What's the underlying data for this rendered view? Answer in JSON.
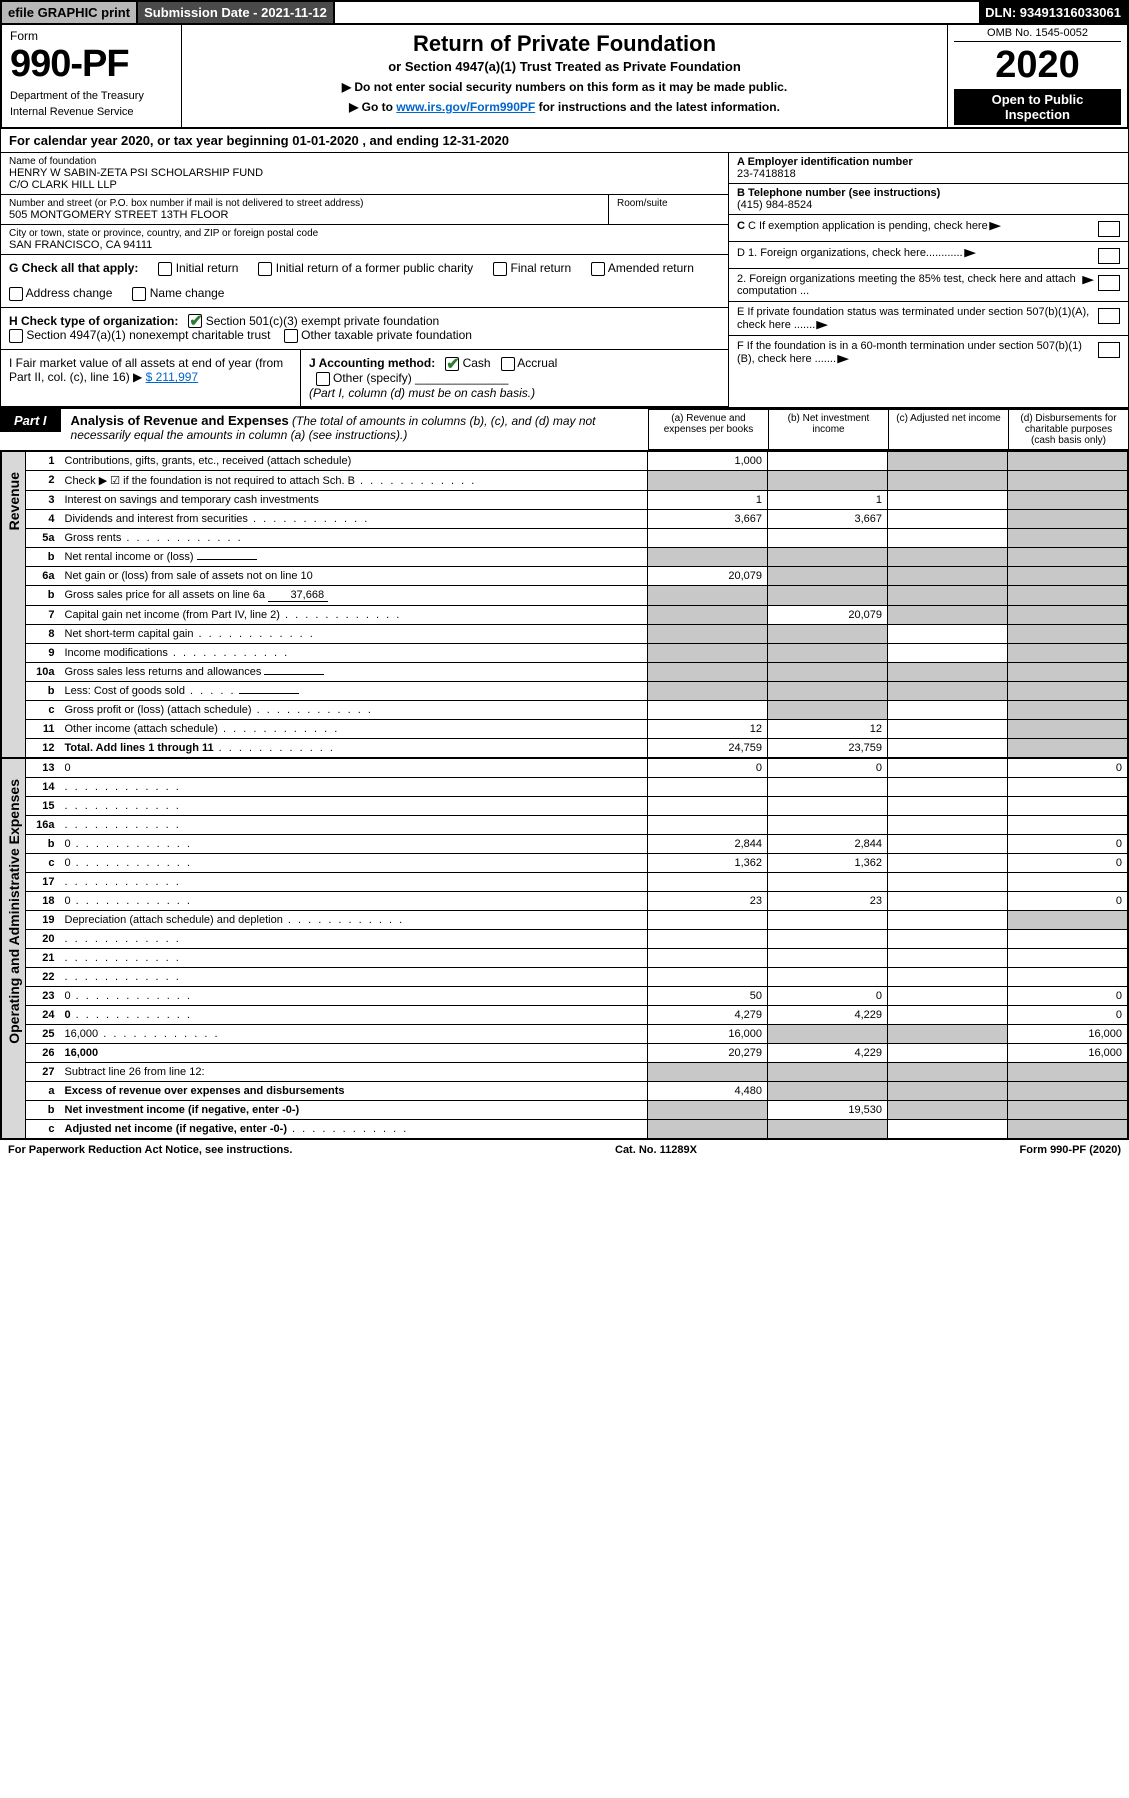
{
  "top": {
    "efile": "efile GRAPHIC print",
    "sub_date_label": "Submission Date - 2021-11-12",
    "dln": "DLN: 93491316033061"
  },
  "header": {
    "form_word": "Form",
    "form_num": "990-PF",
    "dept": "Department of the Treasury",
    "irs": "Internal Revenue Service",
    "title": "Return of Private Foundation",
    "subtitle": "or Section 4947(a)(1) Trust Treated as Private Foundation",
    "inst1": "▶ Do not enter social security numbers on this form as it may be made public.",
    "inst2_pre": "▶ Go to ",
    "inst2_link": "www.irs.gov/Form990PF",
    "inst2_post": " for instructions and the latest information.",
    "omb": "OMB No. 1545-0052",
    "year": "2020",
    "open_pub": "Open to Public Inspection"
  },
  "cal_year": "For calendar year 2020, or tax year beginning 01-01-2020              , and ending 12-31-2020",
  "foundation": {
    "name_lbl": "Name of foundation",
    "name1": "HENRY W SABIN-ZETA PSI SCHOLARSHIP FUND",
    "name2": "C/O CLARK HILL LLP",
    "addr_lbl": "Number and street (or P.O. box number if mail is not delivered to street address)",
    "addr": "505 MONTGOMERY STREET 13TH FLOOR",
    "room_lbl": "Room/suite",
    "city_lbl": "City or town, state or province, country, and ZIP or foreign postal code",
    "city": "SAN FRANCISCO, CA  94111",
    "ein_lbl": "A Employer identification number",
    "ein": "23-7418818",
    "tel_lbl": "B Telephone number (see instructions)",
    "tel": "(415) 984-8524"
  },
  "blocks": {
    "c": "C If exemption application is pending, check here",
    "d1": "D 1. Foreign organizations, check here............",
    "d2": "2. Foreign organizations meeting the 85% test, check here and attach computation ...",
    "e": "E If private foundation status was terminated under section 507(b)(1)(A), check here .......",
    "f": "F If the foundation is in a 60-month termination under section 507(b)(1)(B), check here .......",
    "g_lbl": "G Check all that apply:",
    "g_opts": [
      "Initial return",
      "Initial return of a former public charity",
      "Final return",
      "Amended return",
      "Address change",
      "Name change"
    ],
    "h_lbl": "H Check type of organization:",
    "h1": "Section 501(c)(3) exempt private foundation",
    "h2": "Section 4947(a)(1) nonexempt charitable trust",
    "h3": "Other taxable private foundation",
    "i_lbl": "I Fair market value of all assets at end of year (from Part II, col. (c), line 16) ▶",
    "i_val": "$  211,997",
    "j_lbl": "J Accounting method:",
    "j_cash": "Cash",
    "j_accrual": "Accrual",
    "j_other": "Other (specify)",
    "j_note": "(Part I, column (d) must be on cash basis.)"
  },
  "part1": {
    "tab": "Part I",
    "title": "Analysis of Revenue and Expenses",
    "title_note": " (The total of amounts in columns (b), (c), and (d) may not necessarily equal the amounts in column (a) (see instructions).)",
    "cols": {
      "a": "(a)   Revenue and expenses per books",
      "b": "(b)   Net investment income",
      "c": "(c)   Adjusted net income",
      "d": "(d)   Disbursements for charitable purposes (cash basis only)"
    }
  },
  "side_labels": {
    "rev": "Revenue",
    "exp": "Operating and Administrative Expenses"
  },
  "rows": [
    {
      "n": "1",
      "d": "Contributions, gifts, grants, etc., received (attach schedule)",
      "a": "1,000",
      "b": "",
      "c_sh": true,
      "d_sh": true
    },
    {
      "n": "2",
      "d": "Check ▶ ☑ if the foundation is not required to attach Sch. B",
      "dots": true,
      "a": "",
      "b": "",
      "c_sh": true,
      "d_sh": true,
      "all_sh": true
    },
    {
      "n": "3",
      "d": "Interest on savings and temporary cash investments",
      "a": "1",
      "b": "1",
      "c": "",
      "d_sh": true
    },
    {
      "n": "4",
      "d": "Dividends and interest from securities",
      "dots": true,
      "a": "3,667",
      "b": "3,667",
      "c": "",
      "d_sh": true
    },
    {
      "n": "5a",
      "d": "Gross rents",
      "dots": true,
      "a": "",
      "b": "",
      "c": "",
      "d_sh": true
    },
    {
      "n": "b",
      "d": "Net rental income or (loss)",
      "inline": "",
      "a_sh": true,
      "b_sh": true,
      "c_sh": true,
      "d_sh": true
    },
    {
      "n": "6a",
      "d": "Net gain or (loss) from sale of assets not on line 10",
      "a": "20,079",
      "b_sh": true,
      "c_sh": true,
      "d_sh": true
    },
    {
      "n": "b",
      "d": "Gross sales price for all assets on line 6a",
      "inline": "37,668",
      "a_sh": true,
      "b_sh": true,
      "c_sh": true,
      "d_sh": true
    },
    {
      "n": "7",
      "d": "Capital gain net income (from Part IV, line 2)",
      "dots": true,
      "a_sh": true,
      "b": "20,079",
      "c_sh": true,
      "d_sh": true
    },
    {
      "n": "8",
      "d": "Net short-term capital gain",
      "dots": true,
      "a_sh": true,
      "b_sh": true,
      "c": "",
      "d_sh": true
    },
    {
      "n": "9",
      "d": "Income modifications",
      "dots": true,
      "a_sh": true,
      "b_sh": true,
      "c": "",
      "d_sh": true
    },
    {
      "n": "10a",
      "d": "Gross sales less returns and allowances",
      "inline": "",
      "a_sh": true,
      "b_sh": true,
      "c_sh": true,
      "d_sh": true
    },
    {
      "n": "b",
      "d": "Less: Cost of goods sold",
      "dots_s": true,
      "inline": "",
      "a_sh": true,
      "b_sh": true,
      "c_sh": true,
      "d_sh": true
    },
    {
      "n": "c",
      "d": "Gross profit or (loss) (attach schedule)",
      "dots": true,
      "a": "",
      "b_sh": true,
      "c": "",
      "d_sh": true
    },
    {
      "n": "11",
      "d": "Other income (attach schedule)",
      "dots": true,
      "a": "12",
      "b": "12",
      "c": "",
      "d_sh": true
    },
    {
      "n": "12",
      "d": "Total. Add lines 1 through 11",
      "dots": true,
      "bold": true,
      "a": "24,759",
      "b": "23,759",
      "c": "",
      "d_sh": true
    }
  ],
  "exp_rows": [
    {
      "n": "13",
      "d": "0",
      "a": "0",
      "b": "0",
      "c": ""
    },
    {
      "n": "14",
      "d": "",
      "dots": true,
      "a": "",
      "b": "",
      "c": ""
    },
    {
      "n": "15",
      "d": "",
      "dots": true,
      "a": "",
      "b": "",
      "c": ""
    },
    {
      "n": "16a",
      "d": "",
      "dots": true,
      "a": "",
      "b": "",
      "c": ""
    },
    {
      "n": "b",
      "d": "0",
      "dots": true,
      "a": "2,844",
      "b": "2,844",
      "c": ""
    },
    {
      "n": "c",
      "d": "0",
      "dots": true,
      "a": "1,362",
      "b": "1,362",
      "c": ""
    },
    {
      "n": "17",
      "d": "",
      "dots": true,
      "a": "",
      "b": "",
      "c": ""
    },
    {
      "n": "18",
      "d": "0",
      "dots": true,
      "a": "23",
      "b": "23",
      "c": ""
    },
    {
      "n": "19",
      "d": "Depreciation (attach schedule) and depletion",
      "dots": true,
      "a": "",
      "b": "",
      "c": "",
      "d_sh": true
    },
    {
      "n": "20",
      "d": "",
      "dots": true,
      "a": "",
      "b": "",
      "c": ""
    },
    {
      "n": "21",
      "d": "",
      "dots": true,
      "a": "",
      "b": "",
      "c": ""
    },
    {
      "n": "22",
      "d": "",
      "dots": true,
      "a": "",
      "b": "",
      "c": ""
    },
    {
      "n": "23",
      "d": "0",
      "dots": true,
      "a": "50",
      "b": "0",
      "c": ""
    },
    {
      "n": "24",
      "d": "0",
      "dots": true,
      "bold": true,
      "a": "4,279",
      "b": "4,229",
      "c": ""
    },
    {
      "n": "25",
      "d": "16,000",
      "dots": true,
      "a": "16,000",
      "b_sh": true,
      "c_sh": true
    },
    {
      "n": "26",
      "d": "16,000",
      "bold": true,
      "a": "20,279",
      "b": "4,229",
      "c": ""
    },
    {
      "n": "27",
      "d": "Subtract line 26 from line 12:",
      "a_sh": true,
      "b_sh": true,
      "c_sh": true,
      "d_sh": true
    },
    {
      "n": "a",
      "d": "Excess of revenue over expenses and disbursements",
      "bold": true,
      "a": "4,480",
      "b_sh": true,
      "c_sh": true,
      "d_sh": true
    },
    {
      "n": "b",
      "d": "Net investment income (if negative, enter -0-)",
      "bold": true,
      "a_sh": true,
      "b": "19,530",
      "c_sh": true,
      "d_sh": true
    },
    {
      "n": "c",
      "d": "Adjusted net income (if negative, enter -0-)",
      "dots": true,
      "bold": true,
      "a_sh": true,
      "b_sh": true,
      "c": "",
      "d_sh": true
    }
  ],
  "footer": {
    "left": "For Paperwork Reduction Act Notice, see instructions.",
    "mid": "Cat. No. 11289X",
    "right": "Form 990-PF (2020)"
  },
  "colors": {
    "shade": "#c8c8c8",
    "link": "#0066cc",
    "check": "#2e7d32"
  }
}
